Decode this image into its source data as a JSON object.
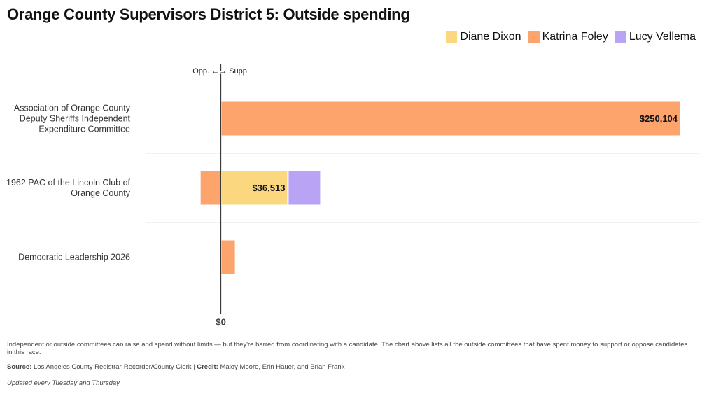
{
  "chart_data": {
    "type": "diverging_bar",
    "title": "Orange County Supervisors District 5: Outside spending",
    "axis_note": "Opp. ←→ Supp.",
    "categories": [
      "Association of Orange County Deputy Sheriffs Independent Expenditure Committee",
      "1962 PAC of the Lincoln Club of Orange County",
      "Democratic Leadership 2026"
    ],
    "series": [
      {
        "name": "Diane Dixon",
        "color": "#fbd87f",
        "values": [
          null,
          36513,
          null
        ],
        "value_labels": [
          null,
          "$36,513",
          null
        ]
      },
      {
        "name": "Katrina Foley",
        "color": "#fda46c",
        "values": [
          250104,
          -11400,
          8000
        ],
        "value_labels": [
          "$250,104",
          null,
          null
        ]
      },
      {
        "name": "Lucy Vellema",
        "color": "#b9a3f5",
        "values": [
          null,
          17900,
          null
        ]
      }
    ],
    "xlim": [
      -41000,
      260000
    ],
    "xticks": [
      {
        "value": 0,
        "label": "$0"
      }
    ],
    "note": "Independent or outside committees can raise and spend without limits — but they're barred from coordinating with a candidate. The chart above lists all the outside committees that have spent money to support or oppose candidates in this race.",
    "source_label": "Source:",
    "source": "Los Angeles County Registrar-Recorder/County Clerk |",
    "credit_label": "Credit:",
    "credit": "Maloy Moore, Erin Hauer, and Brian Frank",
    "updated": "Updated every Tuesday and Thursday"
  }
}
